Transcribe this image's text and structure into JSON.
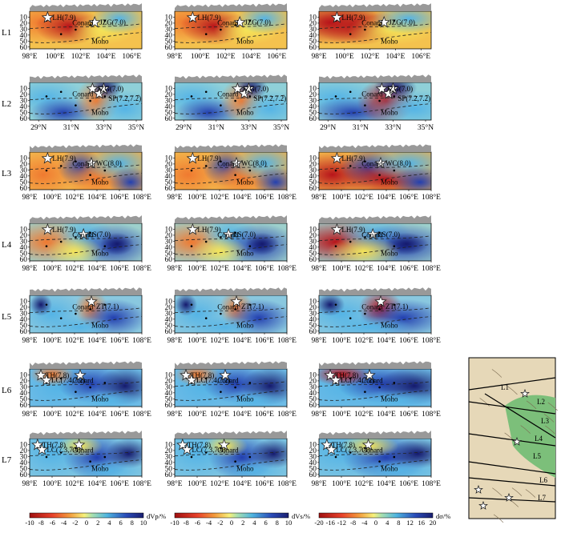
{
  "profiles": [
    {
      "row": "L1",
      "x_ticks": [
        "98°E",
        "100°E",
        "102°E",
        "104°E",
        "106°E"
      ],
      "labels": [
        "LH(7.9)",
        "JZG(7.0)",
        "Conard",
        "Moho"
      ],
      "stars": [
        0.16,
        0.58
      ]
    },
    {
      "row": "L2",
      "x_ticks": [
        "29°N",
        "31°N",
        "33°N",
        "35°N"
      ],
      "labels": [
        "JZG(7.0)",
        "Conard",
        "SP(7.2,7.2)",
        "Moho"
      ],
      "stars": [
        0.56,
        0.62,
        0.66
      ]
    },
    {
      "row": "L3",
      "x_ticks": [
        "98°E",
        "100°E",
        "102°E",
        "104°E",
        "106°E",
        "108°E"
      ],
      "labels": [
        "LH(7.9)",
        "WC(8.0)",
        "Conard",
        "Moho"
      ],
      "stars": [
        0.16,
        0.55
      ]
    },
    {
      "row": "L4",
      "x_ticks": [
        "98°E",
        "100°E",
        "102°E",
        "104°E",
        "106°E",
        "108°E"
      ],
      "labels": [
        "LH(7.9)",
        "LS(7.0)",
        "Conard",
        "Moho"
      ],
      "stars": [
        0.16,
        0.48
      ]
    },
    {
      "row": "L5",
      "x_ticks": [
        "98°E",
        "100°E",
        "102°E",
        "104°E",
        "106°E",
        "108°E"
      ],
      "labels": [
        "Conard",
        "ZT(7.1)",
        "Moho"
      ],
      "stars": [
        0.55
      ]
    },
    {
      "row": "L6",
      "x_ticks": [
        "98°E",
        "100°E",
        "102°E",
        "104°E",
        "106°E",
        "108°E"
      ],
      "labels": [
        "TH(7.8)",
        "LC(7.4,7.2)",
        "Conard",
        "Moho"
      ],
      "stars": [
        0.1,
        0.15,
        0.45
      ]
    },
    {
      "row": "L7",
      "x_ticks": [
        "98°E",
        "100°E",
        "102°E",
        "104°E",
        "106°E",
        "108°E"
      ],
      "labels": [
        "TH(7.8)",
        "LC(7.3,7.4)",
        "Conard",
        "Moho"
      ],
      "stars": [
        0.07,
        0.11,
        0.44
      ]
    }
  ],
  "y_ticks": [
    "10",
    "20",
    "30",
    "40",
    "50",
    "60"
  ],
  "colorbars": [
    {
      "ticks": [
        "-10",
        "-8",
        "-6",
        "-4",
        "-2",
        "0",
        "2",
        "4",
        "6",
        "8",
        "10"
      ],
      "label": "dVp/%"
    },
    {
      "ticks": [
        "-10",
        "-8",
        "-6",
        "-4",
        "-2",
        "0",
        "2",
        "4",
        "6",
        "8",
        "10"
      ],
      "label": "dVs/%"
    },
    {
      "ticks": [
        "-20",
        "-16",
        "-12",
        "-8",
        "-4",
        "0",
        "4",
        "8",
        "12",
        "16",
        "20"
      ],
      "label": "dσ/%"
    }
  ],
  "map": {
    "labels": [
      "L1",
      "L2",
      "L3",
      "L4",
      "L5",
      "L6",
      "L7"
    ]
  },
  "colors": {
    "red": "#c8201c",
    "orange": "#f39a3c",
    "yellow": "#f2e45a",
    "green": "#8dd3a0",
    "cyan": "#5fb8e4",
    "blue": "#2a4bb8",
    "navy": "#1a237e",
    "topo": "#999999"
  }
}
